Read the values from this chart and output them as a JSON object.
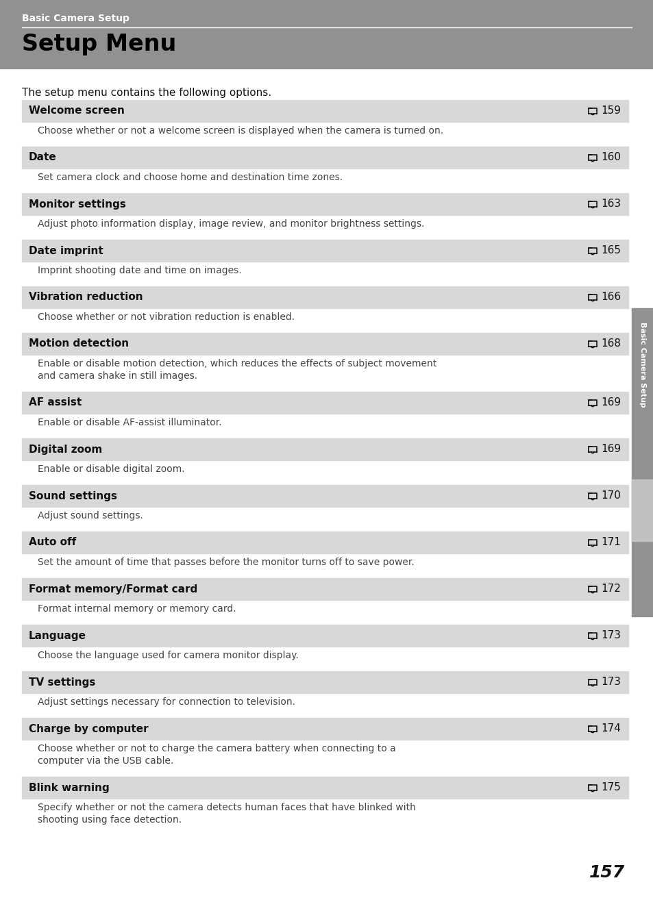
{
  "page_bg": "#ffffff",
  "header_bg": "#919191",
  "header_text": "Basic Camera Setup",
  "header_text_color": "#ffffff",
  "title": "Setup Menu",
  "title_color": "#000000",
  "intro": "The setup menu contains the following options.",
  "row_bg": "#d8d8d8",
  "desc_text_color": "#333333",
  "sidebar_text": "Basic Camera Setup",
  "sidebar_bg": "#919191",
  "sidebar_tab_bg": "#c0c0c0",
  "page_number": "157",
  "entries": [
    {
      "title": "Welcome screen",
      "page_ref": "159",
      "desc": "Choose whether or not a welcome screen is displayed when the camera is turned on.",
      "desc_lines": 1
    },
    {
      "title": "Date",
      "page_ref": "160",
      "desc": "Set camera clock and choose home and destination time zones.",
      "desc_lines": 1
    },
    {
      "title": "Monitor settings",
      "page_ref": "163",
      "desc": "Adjust photo information display, image review, and monitor brightness settings.",
      "desc_lines": 1
    },
    {
      "title": "Date imprint",
      "page_ref": "165",
      "desc": "Imprint shooting date and time on images.",
      "desc_lines": 1
    },
    {
      "title": "Vibration reduction",
      "page_ref": "166",
      "desc": "Choose whether or not vibration reduction is enabled.",
      "desc_lines": 1
    },
    {
      "title": "Motion detection",
      "page_ref": "168",
      "desc": "Enable or disable motion detection, which reduces the effects of subject movement\nand camera shake in still images.",
      "desc_lines": 2
    },
    {
      "title": "AF assist",
      "page_ref": "169",
      "desc": "Enable or disable AF-assist illuminator.",
      "desc_lines": 1
    },
    {
      "title": "Digital zoom",
      "page_ref": "169",
      "desc": "Enable or disable digital zoom.",
      "desc_lines": 1
    },
    {
      "title": "Sound settings",
      "page_ref": "170",
      "desc": "Adjust sound settings.",
      "desc_lines": 1
    },
    {
      "title": "Auto off",
      "page_ref": "171",
      "desc": "Set the amount of time that passes before the monitor turns off to save power.",
      "desc_lines": 1
    },
    {
      "title": "Format memory/Format card",
      "page_ref": "172",
      "desc": "Format internal memory or memory card.",
      "desc_lines": 1
    },
    {
      "title": "Language",
      "page_ref": "173",
      "desc": "Choose the language used for camera monitor display.",
      "desc_lines": 1
    },
    {
      "title": "TV settings",
      "page_ref": "173",
      "desc": "Adjust settings necessary for connection to television.",
      "desc_lines": 1
    },
    {
      "title": "Charge by computer",
      "page_ref": "174",
      "desc": "Choose whether or not to charge the camera battery when connecting to a\ncomputer via the USB cable.",
      "desc_lines": 2
    },
    {
      "title": "Blink warning",
      "page_ref": "175",
      "desc": "Specify whether or not the camera detects human faces that have blinked with\nshooting using face detection.",
      "desc_lines": 2
    }
  ]
}
